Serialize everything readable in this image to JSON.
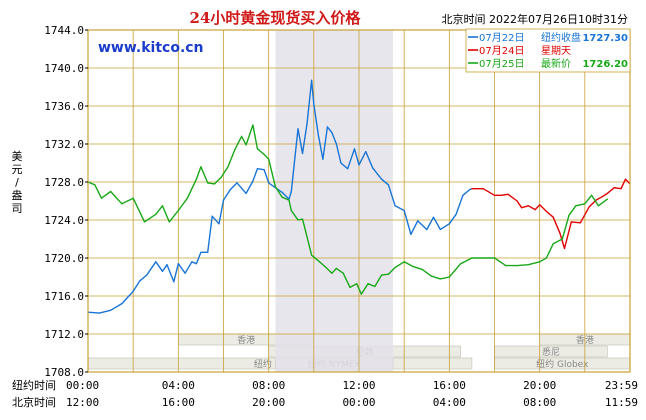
{
  "title": "24小时黄金现货买入价格",
  "timestamp": "北京时间  2022年07月26日10时31分",
  "source": "www.kitco.cn",
  "ylabel": "美元/盎司",
  "xaxis": {
    "row1_label": "纽约时间",
    "row1_ticks": [
      "00:00",
      "04:00",
      "08:00",
      "12:00",
      "16:00",
      "20:00",
      "23:59"
    ],
    "row2_label": "北京时间",
    "row2_ticks": [
      "12:00",
      "16:00",
      "20:00",
      "00:00",
      "04:00",
      "08:00",
      "11:59"
    ]
  },
  "legend": [
    {
      "date": "07月22日",
      "desc": "纽约收盘",
      "value": "1727.30",
      "color": "#1874d6"
    },
    {
      "date": "07月24日",
      "desc": "星期天",
      "value": "",
      "color": "#e00000"
    },
    {
      "date": "07月25日",
      "desc": "最新价",
      "value": "1726.20",
      "color": "#18a818"
    }
  ],
  "sessions": [
    {
      "label": "香港",
      "start": 4.0,
      "end": 10.0,
      "row": 1
    },
    {
      "label": "伦敦",
      "start": 8.0,
      "end": 16.5,
      "row": 2
    },
    {
      "label": "纽约 Globex",
      "start": 0.0,
      "end": 17.0,
      "row": 3
    },
    {
      "label": "纽约 NYMEX",
      "start": 8.3,
      "end": 13.5,
      "row": 3
    },
    {
      "label": "纽约 Globex",
      "start": 18.0,
      "end": 24.0,
      "row": 3
    },
    {
      "label": "悉尼",
      "start": 18.0,
      "end": 23.0,
      "row": 2
    },
    {
      "label": "香港",
      "start": 20.0,
      "end": 24.0,
      "row": 1
    }
  ],
  "colors": {
    "frame": "#c8a032",
    "grid": "#c8a032",
    "axis_text": "#000000",
    "nymex_band": "#e4e2ea",
    "title": "#d01818",
    "source": "#1a3ccc",
    "session_fill": "#ecece4"
  },
  "chart_data": {
    "type": "line",
    "title": "24小时黄金现货买入价格",
    "xlabel": "",
    "ylabel": "美元/盎司",
    "xunit": "纽约时间 (hours)",
    "xlim": [
      0,
      24
    ],
    "ylim": [
      1708.0,
      1744.0
    ],
    "yticks": [
      1708.0,
      1712.0,
      1716.0,
      1720.0,
      1724.0,
      1728.0,
      1732.0,
      1736.0,
      1740.0,
      1744.0
    ],
    "grid": true,
    "nymex_band": [
      8.3,
      13.5
    ],
    "series": [
      {
        "name": "07月22日",
        "color": "#1874d6",
        "x": [
          0.0,
          0.5,
          1.0,
          1.5,
          2.0,
          2.3,
          2.6,
          3.0,
          3.3,
          3.5,
          3.8,
          4.0,
          4.3,
          4.6,
          4.8,
          5.0,
          5.3,
          5.5,
          5.8,
          6.0,
          6.3,
          6.6,
          7.0,
          7.3,
          7.5,
          7.8,
          8.0,
          8.3,
          8.6,
          8.9,
          9.0,
          9.3,
          9.5,
          9.7,
          9.9,
          10.0,
          10.2,
          10.4,
          10.6,
          10.8,
          11.0,
          11.2,
          11.5,
          11.8,
          12.0,
          12.3,
          12.6,
          13.0,
          13.3,
          13.6,
          14.0,
          14.3,
          14.6,
          15.0,
          15.3,
          15.6,
          16.0,
          16.3,
          16.6,
          16.9,
          17.0
        ],
        "y": [
          1714.3,
          1714.2,
          1714.5,
          1715.2,
          1716.5,
          1717.6,
          1718.2,
          1719.6,
          1718.6,
          1719.3,
          1717.5,
          1719.4,
          1718.4,
          1719.6,
          1719.4,
          1720.6,
          1720.6,
          1724.4,
          1723.6,
          1726.1,
          1727.2,
          1727.9,
          1726.8,
          1728.1,
          1729.4,
          1729.3,
          1727.9,
          1727.4,
          1726.9,
          1726.2,
          1727.0,
          1733.6,
          1731.0,
          1734.2,
          1738.7,
          1736.2,
          1732.9,
          1730.4,
          1733.8,
          1733.2,
          1732.0,
          1730.0,
          1729.4,
          1731.5,
          1729.8,
          1731.2,
          1729.5,
          1728.3,
          1727.7,
          1725.5,
          1725.0,
          1722.5,
          1723.9,
          1723.0,
          1724.3,
          1723.0,
          1723.6,
          1724.6,
          1726.6,
          1727.2,
          1727.3
        ]
      },
      {
        "name": "07月24日",
        "color": "#e00000",
        "x": [
          17.0,
          17.5,
          18.0,
          18.3,
          18.6,
          19.0,
          19.2,
          19.5,
          19.8,
          20.0,
          20.3,
          20.6,
          20.9,
          21.1,
          21.4,
          21.8,
          22.2,
          22.5,
          22.8,
          23.0,
          23.3,
          23.6,
          23.8,
          24.0
        ],
        "y": [
          1727.3,
          1727.3,
          1726.6,
          1726.6,
          1726.7,
          1726.0,
          1725.3,
          1725.5,
          1725.1,
          1725.6,
          1724.9,
          1724.3,
          1722.6,
          1721.0,
          1723.8,
          1723.7,
          1725.4,
          1726.1,
          1726.5,
          1726.8,
          1727.4,
          1727.3,
          1728.3,
          1727.8
        ]
      },
      {
        "name": "07月25日",
        "color": "#18a818",
        "x": [
          0.0,
          0.3,
          0.6,
          1.0,
          1.5,
          2.0,
          2.5,
          3.0,
          3.3,
          3.6,
          4.0,
          4.4,
          4.8,
          5.0,
          5.3,
          5.6,
          5.9,
          6.2,
          6.5,
          6.8,
          7.0,
          7.3,
          7.5,
          7.8,
          8.0,
          8.3,
          8.6,
          8.9,
          9.0,
          9.3,
          9.5,
          9.7,
          9.9,
          10.2,
          10.5,
          10.8,
          11.0,
          11.3,
          11.6,
          11.9,
          12.1,
          12.4,
          12.7,
          13.0,
          13.3,
          13.6,
          14.0,
          14.4,
          14.8,
          15.2,
          15.6,
          16.0,
          16.5,
          17.0,
          17.5,
          18.0,
          18.5,
          19.0,
          19.5,
          20.0,
          20.3,
          20.6,
          21.0,
          21.3,
          21.6,
          22.0,
          22.3,
          22.6,
          23.0
        ],
        "y": [
          1728.0,
          1727.7,
          1726.3,
          1727.0,
          1725.7,
          1726.3,
          1723.8,
          1724.6,
          1725.5,
          1723.8,
          1725.0,
          1726.3,
          1728.3,
          1729.6,
          1727.9,
          1727.8,
          1728.5,
          1729.6,
          1731.4,
          1732.8,
          1731.9,
          1734.0,
          1731.5,
          1730.9,
          1730.4,
          1727.5,
          1726.4,
          1726.1,
          1725.0,
          1724.0,
          1724.1,
          1722.2,
          1720.3,
          1719.7,
          1719.1,
          1718.4,
          1718.9,
          1718.4,
          1716.9,
          1717.3,
          1716.2,
          1717.3,
          1717.0,
          1718.2,
          1718.3,
          1719.0,
          1719.6,
          1719.1,
          1718.8,
          1718.1,
          1717.8,
          1718.0,
          1719.4,
          1720.0,
          1720.0,
          1720.0,
          1719.2,
          1719.2,
          1719.3,
          1719.6,
          1720.0,
          1721.5,
          1722.0,
          1724.5,
          1725.5,
          1725.7,
          1726.6,
          1725.5,
          1726.2
        ]
      }
    ]
  }
}
